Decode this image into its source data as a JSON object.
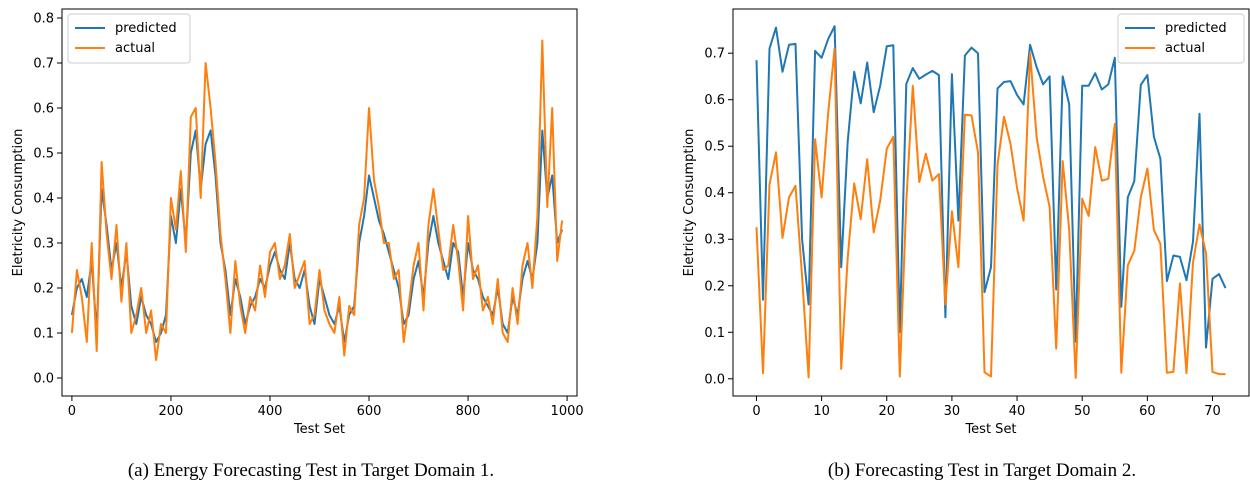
{
  "colors": {
    "predicted": "#1f77b4",
    "actual": "#ff7f0e"
  },
  "captions": [
    "(a) Energy Forecasting Test in Target Domain 1.",
    "(b) Forecasting Test in Target Domain 2."
  ],
  "chart_data": [
    {
      "type": "line",
      "xlabel": "Test Set",
      "ylabel": "Eletricity Consumption",
      "xlim": [
        -20,
        1020
      ],
      "ylim": [
        -0.04,
        0.82
      ],
      "xticks": [
        0,
        200,
        400,
        600,
        800,
        1000
      ],
      "yticks": [
        0.0,
        0.1,
        0.2,
        0.3,
        0.4,
        0.5,
        0.6,
        0.7,
        0.8
      ],
      "ytick_labels": [
        "0.0",
        "0.1",
        "0.2",
        "0.3",
        "0.4",
        "0.5",
        "0.6",
        "0.7",
        "0.8"
      ],
      "legend": "top-left",
      "grid": false,
      "x": [
        0,
        10,
        20,
        30,
        40,
        50,
        60,
        70,
        80,
        90,
        100,
        110,
        120,
        130,
        140,
        150,
        160,
        170,
        180,
        190,
        200,
        210,
        220,
        230,
        240,
        250,
        260,
        270,
        280,
        290,
        300,
        310,
        320,
        330,
        340,
        350,
        360,
        370,
        380,
        390,
        400,
        410,
        420,
        430,
        440,
        450,
        460,
        470,
        480,
        490,
        500,
        510,
        520,
        530,
        540,
        550,
        560,
        570,
        580,
        590,
        600,
        610,
        620,
        630,
        640,
        650,
        660,
        670,
        680,
        690,
        700,
        710,
        720,
        730,
        740,
        750,
        760,
        770,
        780,
        790,
        800,
        810,
        820,
        830,
        840,
        850,
        860,
        870,
        880,
        890,
        900,
        910,
        920,
        930,
        940,
        950,
        960,
        970,
        980,
        990
      ],
      "series": [
        {
          "name": "predicted",
          "values": [
            0.14,
            0.2,
            0.22,
            0.18,
            0.26,
            0.1,
            0.42,
            0.34,
            0.24,
            0.3,
            0.2,
            0.28,
            0.16,
            0.12,
            0.18,
            0.14,
            0.12,
            0.08,
            0.1,
            0.14,
            0.36,
            0.3,
            0.42,
            0.3,
            0.5,
            0.55,
            0.42,
            0.52,
            0.55,
            0.45,
            0.3,
            0.24,
            0.14,
            0.22,
            0.18,
            0.12,
            0.16,
            0.18,
            0.22,
            0.2,
            0.25,
            0.28,
            0.24,
            0.22,
            0.3,
            0.22,
            0.2,
            0.24,
            0.16,
            0.12,
            0.22,
            0.18,
            0.14,
            0.12,
            0.16,
            0.08,
            0.14,
            0.16,
            0.3,
            0.36,
            0.45,
            0.4,
            0.35,
            0.32,
            0.28,
            0.24,
            0.2,
            0.12,
            0.14,
            0.22,
            0.26,
            0.18,
            0.3,
            0.36,
            0.3,
            0.26,
            0.22,
            0.3,
            0.28,
            0.18,
            0.3,
            0.24,
            0.22,
            0.18,
            0.16,
            0.14,
            0.2,
            0.12,
            0.1,
            0.18,
            0.14,
            0.22,
            0.26,
            0.22,
            0.3,
            0.55,
            0.4,
            0.45,
            0.3,
            0.33
          ]
        },
        {
          "name": "actual",
          "values": [
            0.1,
            0.24,
            0.18,
            0.08,
            0.3,
            0.06,
            0.48,
            0.32,
            0.22,
            0.34,
            0.17,
            0.3,
            0.1,
            0.14,
            0.2,
            0.1,
            0.15,
            0.04,
            0.12,
            0.1,
            0.4,
            0.33,
            0.46,
            0.28,
            0.58,
            0.6,
            0.4,
            0.7,
            0.6,
            0.48,
            0.32,
            0.22,
            0.1,
            0.26,
            0.16,
            0.1,
            0.18,
            0.15,
            0.25,
            0.18,
            0.28,
            0.3,
            0.22,
            0.25,
            0.32,
            0.2,
            0.23,
            0.26,
            0.12,
            0.14,
            0.24,
            0.15,
            0.12,
            0.1,
            0.18,
            0.05,
            0.16,
            0.14,
            0.34,
            0.4,
            0.6,
            0.44,
            0.38,
            0.3,
            0.3,
            0.22,
            0.24,
            0.08,
            0.16,
            0.25,
            0.3,
            0.15,
            0.34,
            0.42,
            0.33,
            0.24,
            0.25,
            0.34,
            0.26,
            0.15,
            0.36,
            0.22,
            0.25,
            0.15,
            0.18,
            0.12,
            0.22,
            0.1,
            0.08,
            0.2,
            0.12,
            0.25,
            0.3,
            0.2,
            0.36,
            0.75,
            0.38,
            0.6,
            0.26,
            0.35
          ]
        }
      ]
    },
    {
      "type": "line",
      "xlabel": "Test Set",
      "ylabel": "Eletricity Consumption",
      "xlim": [
        -3.6,
        75.6
      ],
      "ylim": [
        -0.037,
        0.795
      ],
      "xticks": [
        0,
        10,
        20,
        30,
        40,
        50,
        60,
        70
      ],
      "yticks": [
        0.0,
        0.1,
        0.2,
        0.3,
        0.4,
        0.5,
        0.6,
        0.7
      ],
      "ytick_labels": [
        "0.0",
        "0.1",
        "0.2",
        "0.3",
        "0.4",
        "0.5",
        "0.6",
        "0.7"
      ],
      "legend": "top-right",
      "grid": false,
      "x": [
        0,
        1,
        2,
        3,
        4,
        5,
        6,
        7,
        8,
        9,
        10,
        11,
        12,
        13,
        14,
        15,
        16,
        17,
        18,
        19,
        20,
        21,
        22,
        23,
        24,
        25,
        26,
        27,
        28,
        29,
        30,
        31,
        32,
        33,
        34,
        35,
        36,
        37,
        38,
        39,
        40,
        41,
        42,
        43,
        44,
        45,
        46,
        47,
        48,
        49,
        50,
        51,
        52,
        53,
        54,
        55,
        56,
        57,
        58,
        59,
        60,
        61,
        62,
        63,
        64,
        65,
        66,
        67,
        68,
        69,
        70,
        71,
        72
      ],
      "series": [
        {
          "name": "predicted",
          "values": [
            0.685,
            0.17,
            0.71,
            0.755,
            0.66,
            0.718,
            0.72,
            0.3,
            0.16,
            0.705,
            0.69,
            0.73,
            0.758,
            0.24,
            0.51,
            0.66,
            0.592,
            0.68,
            0.573,
            0.63,
            0.715,
            0.717,
            0.1,
            0.634,
            0.668,
            0.645,
            0.654,
            0.662,
            0.653,
            0.132,
            0.655,
            0.34,
            0.695,
            0.712,
            0.7,
            0.186,
            0.24,
            0.624,
            0.638,
            0.64,
            0.61,
            0.59,
            0.718,
            0.67,
            0.633,
            0.65,
            0.192,
            0.65,
            0.59,
            0.08,
            0.63,
            0.63,
            0.657,
            0.622,
            0.633,
            0.69,
            0.155,
            0.39,
            0.425,
            0.632,
            0.653,
            0.52,
            0.473,
            0.21,
            0.265,
            0.262,
            0.212,
            0.295,
            0.57,
            0.067,
            0.215,
            0.225,
            0.195
          ]
        },
        {
          "name": "actual",
          "values": [
            0.326,
            0.012,
            0.418,
            0.487,
            0.303,
            0.39,
            0.415,
            0.22,
            0.003,
            0.515,
            0.39,
            0.57,
            0.71,
            0.021,
            0.26,
            0.42,
            0.343,
            0.472,
            0.315,
            0.383,
            0.495,
            0.52,
            0.005,
            0.38,
            0.63,
            0.423,
            0.484,
            0.426,
            0.44,
            0.16,
            0.36,
            0.24,
            0.568,
            0.566,
            0.487,
            0.014,
            0.005,
            0.46,
            0.563,
            0.505,
            0.41,
            0.34,
            0.7,
            0.52,
            0.434,
            0.37,
            0.065,
            0.468,
            0.32,
            0.002,
            0.387,
            0.35,
            0.498,
            0.426,
            0.43,
            0.548,
            0.013,
            0.244,
            0.275,
            0.39,
            0.452,
            0.32,
            0.29,
            0.013,
            0.015,
            0.205,
            0.012,
            0.25,
            0.332,
            0.27,
            0.015,
            0.01,
            0.01
          ]
        }
      ]
    }
  ]
}
